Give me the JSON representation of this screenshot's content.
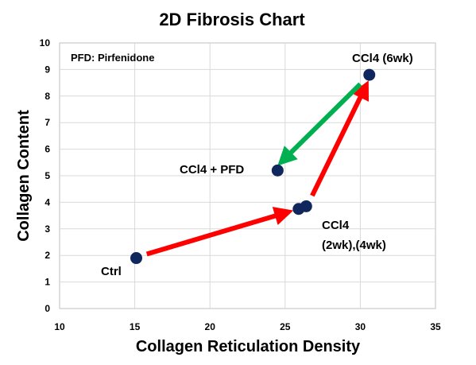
{
  "chart_data": {
    "type": "scatter",
    "title": "2D Fibrosis Chart",
    "xlabel": "Collagen Reticulation Density",
    "ylabel": "Collagen Content",
    "xlim": [
      10,
      35
    ],
    "ylim": [
      0,
      10
    ],
    "xticks": [
      "10",
      "15",
      "20",
      "25",
      "30",
      "35"
    ],
    "yticks": [
      "0",
      "1",
      "2",
      "3",
      "4",
      "5",
      "6",
      "7",
      "8",
      "9",
      "10"
    ],
    "grid": true,
    "legend": "none",
    "annotation": "PFD: Pirfenidone",
    "points": [
      {
        "x": 15.1,
        "y": 1.9
      },
      {
        "x": 25.9,
        "y": 3.75
      },
      {
        "x": 26.4,
        "y": 3.85
      },
      {
        "x": 30.6,
        "y": 8.8
      },
      {
        "x": 24.5,
        "y": 5.2
      }
    ],
    "point_color": "#10275e",
    "labels": [
      {
        "text": "Ctrl"
      },
      {
        "text": "CCl4"
      },
      {
        "text": "(2wk),(4wk)"
      },
      {
        "text": "CCl4 (6wk)"
      },
      {
        "text": "CCl4 + PFD"
      }
    ],
    "arrows": [
      {
        "from": [
          15.8,
          2.05
        ],
        "to": [
          25.0,
          3.6
        ],
        "color": "#ff0000"
      },
      {
        "from": [
          26.8,
          4.25
        ],
        "to": [
          30.3,
          8.3
        ],
        "color": "#ff0000"
      },
      {
        "from": [
          30.0,
          8.45
        ],
        "to": [
          24.9,
          5.6
        ],
        "color": "#00b050"
      }
    ]
  }
}
